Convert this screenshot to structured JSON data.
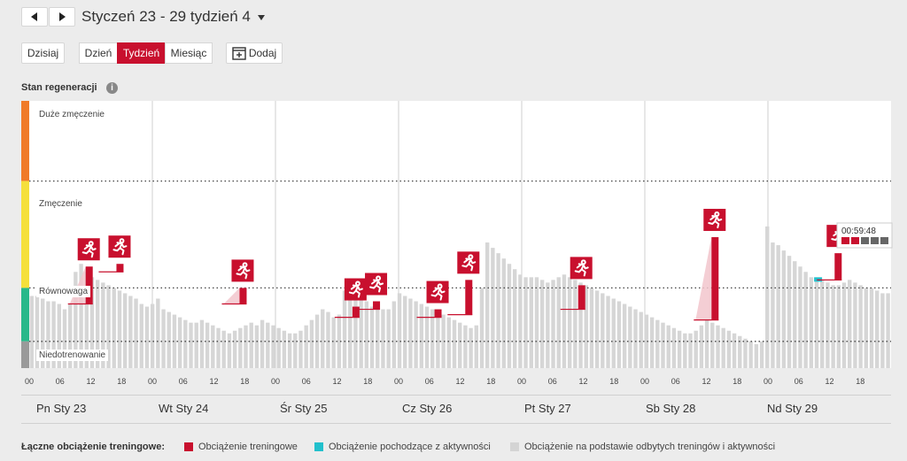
{
  "header": {
    "prev_icon": "triangle-left",
    "next_icon": "triangle-right",
    "title": "Styczeń 23 - 29 tydzień 4",
    "title_dropdown_icon": "caret-down"
  },
  "toolbar": {
    "today_label": "Dzisiaj",
    "view_day": "Dzień",
    "view_week": "Tydzień",
    "view_month": "Miesiąc",
    "active_view": "Tydzień",
    "add_label": "Dodaj",
    "add_icon": "calendar-plus"
  },
  "section_title": "Stan regeneracji",
  "info_icon": "i",
  "zones": [
    {
      "label": "Duże zmęczenie",
      "color": "#f07a28"
    },
    {
      "label": "Zmęczenie",
      "color": "#f5e03c"
    },
    {
      "label": "Równowaga",
      "color": "#28b88a"
    },
    {
      "label": "Niedotrenowanie",
      "color": "#9a9a9a"
    }
  ],
  "hour_ticks": [
    "00",
    "06",
    "12",
    "18"
  ],
  "days": [
    "Pn Sty 23",
    "Wt Sty 24",
    "Śr Sty 25",
    "Cz Sty 26",
    "Pt Sty 27",
    "Sb Sty 28",
    "Nd Sty 29"
  ],
  "tooltip": {
    "time": "00:59:48",
    "filled": 2,
    "total": 5
  },
  "legend": {
    "title": "Łączne obciążenie treningowe:",
    "items": [
      {
        "label": "Obciążenie treningowe",
        "color": "#c8102e"
      },
      {
        "label": "Obciążenie pochodzące z aktywności",
        "color": "#22c0cc"
      },
      {
        "label": "Obciążenie na podstawie odbytych treningów i aktywności",
        "color": "#d4d4d4"
      }
    ]
  },
  "chart_data": {
    "type": "bar",
    "y_levels": {
      "zmeczenie_threshold": 70,
      "rownowaga_threshold": 30,
      "niedotrenowanie_threshold": 10
    },
    "ylim": [
      0,
      100
    ],
    "recovery_values": [
      27,
      27,
      26,
      25,
      25,
      24,
      22,
      24,
      36,
      39,
      36,
      34,
      33,
      32,
      31,
      30,
      29,
      28,
      27,
      26,
      24,
      23,
      24,
      26,
      22,
      21,
      20,
      19,
      18,
      17,
      17,
      18,
      17,
      16,
      15,
      14,
      13,
      14,
      15,
      16,
      17,
      16,
      18,
      17,
      16,
      15,
      14,
      13,
      13,
      14,
      16,
      18,
      20,
      22,
      21,
      19,
      20,
      29,
      28,
      27,
      26,
      25,
      23,
      22,
      22,
      22,
      25,
      28,
      27,
      26,
      25,
      24,
      23,
      22,
      21,
      20,
      19,
      18,
      17,
      16,
      15,
      16,
      30,
      47,
      45,
      43,
      41,
      39,
      37,
      35,
      34,
      34,
      34,
      33,
      32,
      33,
      34,
      35,
      34,
      33,
      32,
      31,
      30,
      29,
      28,
      27,
      26,
      25,
      24,
      23,
      22,
      21,
      20,
      19,
      18,
      17,
      16,
      15,
      14,
      13,
      13,
      14,
      16,
      18,
      17,
      16,
      15,
      14,
      13,
      12,
      11,
      10,
      9,
      10,
      53,
      47,
      46,
      44,
      42,
      40,
      38,
      36,
      34,
      33,
      33,
      32,
      31,
      31,
      32,
      33,
      32,
      31,
      30,
      30,
      29,
      28,
      28
    ],
    "training_loads": [
      {
        "day": 0,
        "hour": 11,
        "from": 24,
        "to": 38,
        "has_triangle": true
      },
      {
        "day": 0,
        "hour": 17,
        "from": 36,
        "to": 39,
        "has_triangle": false
      },
      {
        "day": 1,
        "hour": 17,
        "from": 24,
        "to": 30,
        "has_triangle": true
      },
      {
        "day": 2,
        "hour": 15,
        "from": 19,
        "to": 23,
        "has_triangle": false
      },
      {
        "day": 2,
        "hour": 19,
        "from": 22,
        "to": 25,
        "has_triangle": false
      },
      {
        "day": 3,
        "hour": 7,
        "from": 19,
        "to": 22,
        "has_triangle": false
      },
      {
        "day": 3,
        "hour": 13,
        "from": 20,
        "to": 33,
        "has_triangle": false
      },
      {
        "day": 4,
        "hour": 11,
        "from": 22,
        "to": 31,
        "has_triangle": false
      },
      {
        "day": 5,
        "hour": 13,
        "from": 18,
        "to": 49,
        "has_triangle": true
      },
      {
        "day": 6,
        "hour": 13,
        "from": 33,
        "to": 43,
        "has_triangle": false
      }
    ],
    "activity_loads": [
      {
        "day": 6,
        "hour": 9,
        "value": 33
      }
    ]
  }
}
